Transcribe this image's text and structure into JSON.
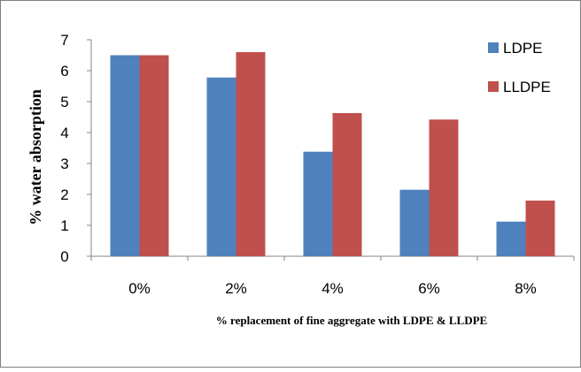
{
  "chart_data": {
    "type": "bar",
    "categories": [
      "0%",
      "2%",
      "4%",
      "6%",
      "8%"
    ],
    "series": [
      {
        "name": "LDPE",
        "values": [
          6.5,
          5.78,
          3.38,
          2.15,
          1.12
        ],
        "color": "#4F81BD"
      },
      {
        "name": "LLDPE",
        "values": [
          6.5,
          6.6,
          4.63,
          4.42,
          1.8
        ],
        "color": "#C0504D"
      }
    ],
    "title": "",
    "xlabel": "% replacement of fine aggregate with LDPE & LLDPE",
    "ylabel": "% water absorption",
    "ylim": [
      0,
      7
    ],
    "yticks": [
      "0",
      "1",
      "2",
      "3",
      "4",
      "5",
      "6",
      "7"
    ],
    "grid": false,
    "legend": "top-right"
  }
}
